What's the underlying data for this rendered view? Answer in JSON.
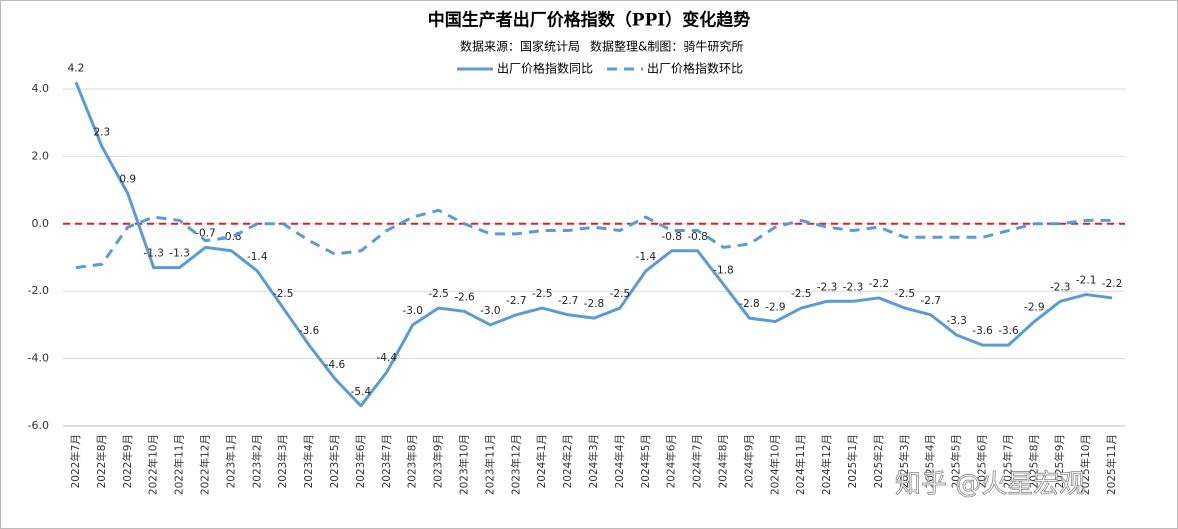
{
  "chart_data": {
    "type": "line",
    "title": "中国生产者出厂价格指数（PPI）变化趋势",
    "source": "数据来源：国家统计局",
    "credit": "数据整理&制图：骑牛研究所",
    "watermark": "知乎 @火星宏观",
    "categories": [
      "2022年7月",
      "2022年8月",
      "2022年9月",
      "2022年10月",
      "2022年11月",
      "2022年12月",
      "2023年1月",
      "2023年2月",
      "2023年3月",
      "2023年4月",
      "2023年5月",
      "2023年6月",
      "2023年7月",
      "2023年8月",
      "2023年9月",
      "2023年10月",
      "2023年11月",
      "2023年12月",
      "2024年1月",
      "2024年2月",
      "2024年3月",
      "2024年4月",
      "2024年5月",
      "2024年6月",
      "2024年7月",
      "2024年8月",
      "2024年9月",
      "2024年10月",
      "2024年11月",
      "2024年12月",
      "2025年1月",
      "2025年2月",
      "2025年3月",
      "2025年4月",
      "2025年5月",
      "2025年6月",
      "2025年7月",
      "2025年8月",
      "2025年9月",
      "2025年10月",
      "2025年11月"
    ],
    "series": [
      {
        "name": "出厂价格指数同比",
        "color": "#5b9bd5",
        "dash": false,
        "values": [
          4.2,
          2.3,
          0.9,
          -1.3,
          -1.3,
          -0.7,
          -0.8,
          -1.4,
          -2.5,
          -3.6,
          -4.6,
          -5.4,
          -4.4,
          -3,
          -2.5,
          -2.6,
          -3,
          -2.7,
          -2.5,
          -2.7,
          -2.8,
          -2.5,
          -1.4,
          -0.8,
          -0.8,
          -1.8,
          -2.8,
          -2.9,
          -2.5,
          -2.3,
          -2.3,
          -2.2,
          -2.5,
          -2.7,
          -3.3,
          -3.6,
          -3.6,
          -2.9,
          -2.3,
          -2.1,
          -2.2
        ],
        "value_labels": [
          "4.2",
          "2.3",
          "0.9",
          "-1.3",
          "-1.3",
          "-0.7",
          "-0.8",
          "-1.4",
          "-2.5",
          "-3.6",
          "-4.6",
          "-5.4",
          "-4.4",
          "-3.0",
          "-2.5",
          "-2.6",
          "-3.0",
          "-2.7",
          "-2.5",
          "-2.7",
          "-2.8",
          "-2.5",
          "-1.4",
          "-0.8",
          "-0.8",
          "-1.8",
          "-2.8",
          "-2.9",
          "-2.5",
          "-2.3",
          "-2.3",
          "-2.2",
          "-2.5",
          "-2.7",
          "-3.3",
          "-3.6",
          "-3.6",
          "-2.9",
          "-2.3",
          "-2.1",
          "-2.2"
        ]
      },
      {
        "name": "出厂价格指数环比",
        "color": "#5b9bd5",
        "dash": true,
        "values": [
          -1.3,
          -1.2,
          -0.1,
          0.2,
          0.1,
          -0.5,
          -0.4,
          0,
          0,
          -0.5,
          -0.9,
          -0.8,
          -0.2,
          0.2,
          0.4,
          0,
          -0.3,
          -0.3,
          -0.2,
          -0.2,
          -0.1,
          -0.2,
          0.2,
          -0.2,
          -0.2,
          -0.7,
          -0.6,
          -0.1,
          0.1,
          -0.1,
          -0.2,
          -0.1,
          -0.4,
          -0.4,
          -0.4,
          -0.4,
          -0.2,
          0,
          0,
          0.1,
          0.1
        ]
      }
    ],
    "reference_line": {
      "value": 0,
      "color": "#e02020"
    },
    "ylim": [
      -6,
      4
    ],
    "yticks": [
      {
        "value": -6,
        "label": "-6.0"
      },
      {
        "value": -4,
        "label": "-4.0"
      },
      {
        "value": -2,
        "label": "-2.0"
      },
      {
        "value": 0,
        "label": "0.0"
      },
      {
        "value": 2,
        "label": "2.0"
      },
      {
        "value": 4,
        "label": "4.0"
      }
    ],
    "grid": true
  }
}
